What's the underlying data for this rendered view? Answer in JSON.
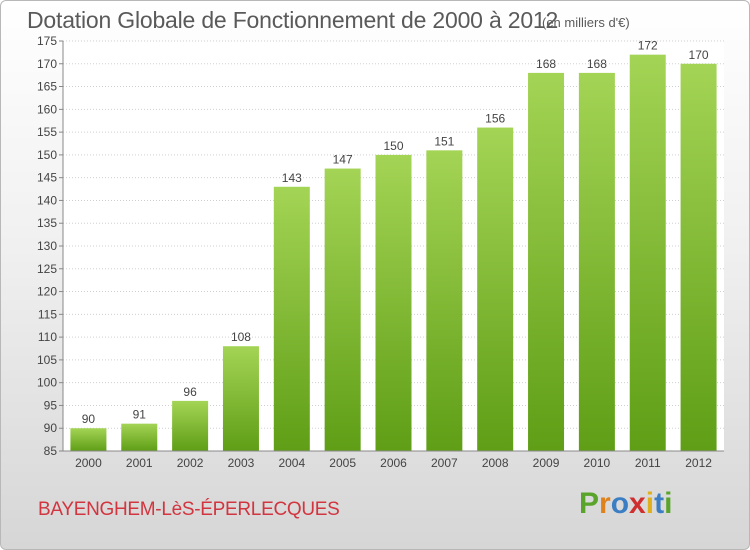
{
  "header": {
    "title": "Dotation Globale de Fonctionnement de 2000 à 2012",
    "subtitle": "(en milliers d'€)"
  },
  "footer": {
    "commune": "BAYENGHEM-LèS-ÉPERLECQUES",
    "logo": [
      "P",
      "r",
      "o",
      "x",
      "i",
      "t",
      "i"
    ]
  },
  "colors": {
    "bar_top": "#a4d455",
    "bar_bottom": "#5f9e16",
    "grid": "#d0d0d0",
    "text": "#444444",
    "commune": "#d2353f",
    "logo": [
      "#5aa42c",
      "#e0821c",
      "#3c7ec3",
      "#cf2f2f",
      "#e0b01c",
      "#3c7ec3",
      "#5aa42c"
    ]
  },
  "chart_data": {
    "type": "bar",
    "categories": [
      "2000",
      "2001",
      "2002",
      "2003",
      "2004",
      "2005",
      "2006",
      "2007",
      "2008",
      "2009",
      "2010",
      "2011",
      "2012"
    ],
    "values": [
      90,
      91,
      96,
      108,
      143,
      147,
      150,
      151,
      156,
      168,
      168,
      172,
      170
    ],
    "ylim": [
      85,
      175
    ],
    "yticks": [
      85,
      90,
      95,
      100,
      105,
      110,
      115,
      120,
      125,
      130,
      135,
      140,
      145,
      150,
      155,
      160,
      165,
      170,
      175
    ],
    "grid": true,
    "legend": "none"
  }
}
